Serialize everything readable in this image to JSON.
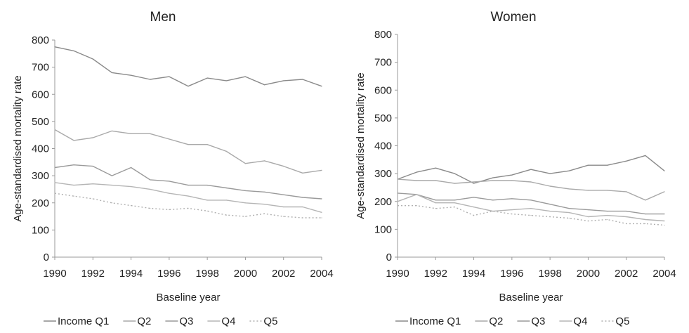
{
  "chart_data": [
    {
      "type": "line",
      "title": "Men",
      "xlabel": "Baseline year",
      "ylabel": "Age-standardised mortality rate",
      "ylim": [
        0,
        800
      ],
      "yticks": [
        "0",
        "100",
        "200",
        "300",
        "400",
        "500",
        "600",
        "700",
        "800"
      ],
      "xticks": [
        "1990",
        "1992",
        "1994",
        "1996",
        "1998",
        "2000",
        "2002",
        "2004"
      ],
      "x": [
        1990,
        1991,
        1992,
        1993,
        1994,
        1995,
        1996,
        1997,
        1998,
        1999,
        2000,
        2001,
        2002,
        2003,
        2004
      ],
      "grid": false,
      "legend_position": "bottom",
      "series": [
        {
          "name": "Income Q1",
          "color": "#8a8a8a",
          "dash": "",
          "values": [
            775,
            760,
            730,
            680,
            670,
            655,
            665,
            630,
            660,
            650,
            665,
            635,
            650,
            655,
            630
          ]
        },
        {
          "name": "Q2",
          "color": "#a9a9a9",
          "dash": "",
          "values": [
            470,
            430,
            440,
            465,
            455,
            455,
            435,
            415,
            415,
            390,
            345,
            355,
            335,
            310,
            320
          ]
        },
        {
          "name": "Q3",
          "color": "#9a9a9a",
          "dash": "",
          "values": [
            330,
            340,
            335,
            300,
            330,
            285,
            280,
            265,
            265,
            255,
            245,
            240,
            230,
            220,
            215
          ]
        },
        {
          "name": "Q4",
          "color": "#b5b5b5",
          "dash": "",
          "values": [
            275,
            265,
            270,
            265,
            260,
            250,
            235,
            225,
            210,
            210,
            200,
            195,
            185,
            185,
            165
          ]
        },
        {
          "name": "Q5",
          "color": "#b0b0b0",
          "dash": "2,3",
          "values": [
            235,
            225,
            215,
            200,
            190,
            180,
            175,
            180,
            170,
            155,
            150,
            160,
            150,
            145,
            145
          ]
        }
      ]
    },
    {
      "type": "line",
      "title": "Women",
      "xlabel": "Baseline year",
      "ylabel": "Age-standardised mortality rate",
      "ylim": [
        0,
        800
      ],
      "yticks": [
        "0",
        "100",
        "200",
        "300",
        "400",
        "500",
        "600",
        "700",
        "800"
      ],
      "xticks": [
        "1990",
        "1992",
        "1994",
        "1996",
        "1998",
        "2000",
        "2002",
        "2004"
      ],
      "x": [
        1990,
        1991,
        1992,
        1993,
        1994,
        1995,
        1996,
        1997,
        1998,
        1999,
        2000,
        2001,
        2002,
        2003,
        2004
      ],
      "grid": false,
      "legend_position": "bottom",
      "series": [
        {
          "name": "Income Q1",
          "color": "#8a8a8a",
          "dash": "",
          "values": [
            280,
            305,
            320,
            300,
            265,
            285,
            295,
            315,
            300,
            310,
            330,
            330,
            345,
            365,
            310
          ]
        },
        {
          "name": "Q2",
          "color": "#a9a9a9",
          "dash": "",
          "values": [
            280,
            275,
            275,
            265,
            270,
            275,
            275,
            270,
            255,
            245,
            240,
            240,
            235,
            205,
            235
          ]
        },
        {
          "name": "Q3",
          "color": "#9a9a9a",
          "dash": "",
          "values": [
            230,
            225,
            205,
            205,
            215,
            205,
            210,
            205,
            190,
            175,
            170,
            165,
            165,
            155,
            155
          ]
        },
        {
          "name": "Q4",
          "color": "#b5b5b5",
          "dash": "",
          "values": [
            200,
            225,
            195,
            195,
            180,
            165,
            170,
            175,
            165,
            160,
            145,
            150,
            145,
            135,
            130
          ]
        },
        {
          "name": "Q5",
          "color": "#b0b0b0",
          "dash": "2,3",
          "values": [
            185,
            185,
            175,
            180,
            150,
            165,
            155,
            150,
            145,
            140,
            130,
            135,
            120,
            120,
            115
          ]
        }
      ]
    }
  ]
}
